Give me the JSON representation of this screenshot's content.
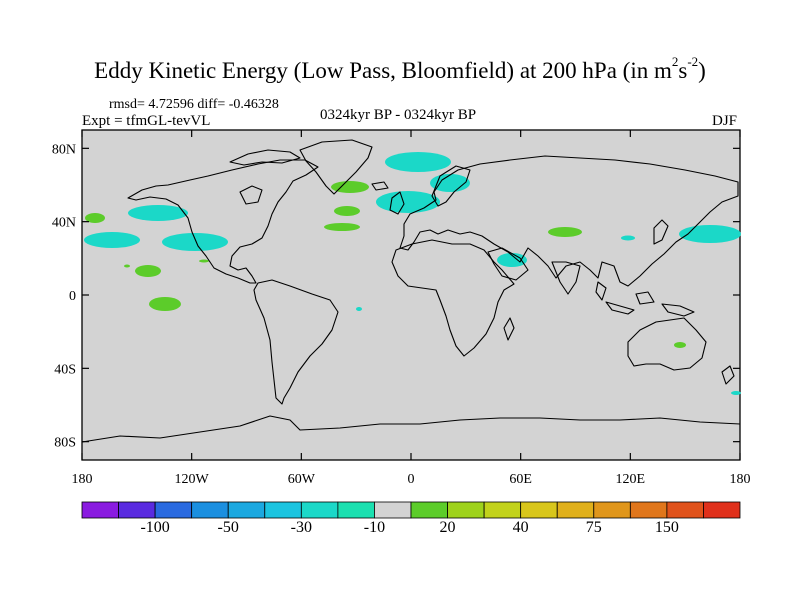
{
  "title": {
    "main": "Eddy Kinetic Energy (Low Pass, Bloomfield) at 200 hPa (in m",
    "sup1": "2",
    "mid": "s",
    "sup2": "-2",
    "end": ")"
  },
  "stats": {
    "rmsd_diff": "rmsd= 4.72596 diff= -0.46328",
    "expt": "Expt = tfmGL-tevVL",
    "period": "0324kyr BP - 0324kyr BP",
    "season": "DJF"
  },
  "map": {
    "background_color": "#d3d3d3",
    "lat_ticks": [
      "80N",
      "40N",
      "0",
      "40S",
      "80S"
    ],
    "lon_ticks": [
      "180",
      "120W",
      "60W",
      "0",
      "60E",
      "120E",
      "180"
    ],
    "lat_values": [
      80,
      40,
      0,
      -40,
      -80
    ],
    "lon_values": [
      -180,
      -120,
      -60,
      0,
      60,
      120,
      180
    ],
    "lat_range": [
      -90,
      90
    ],
    "lon_range": [
      -180,
      180
    ]
  },
  "colorbar": {
    "colors": [
      "#8a1be0",
      "#5a2be0",
      "#2a6ae0",
      "#1b8fe0",
      "#1ba8e0",
      "#1bc4e0",
      "#1bd8c8",
      "#1be0b0",
      "#d3d3d3",
      "#5ccc2a",
      "#9ed21b",
      "#c2d21b",
      "#d8c61b",
      "#e0b01b",
      "#e0961b",
      "#e0761b",
      "#e0521b",
      "#e0301b"
    ],
    "labels": [
      "-100",
      "-50",
      "-30",
      "-10",
      "20",
      "40",
      "75",
      "150"
    ]
  },
  "features": {
    "cyan_color": "#1bd8c8",
    "green_color": "#5ccc2a"
  }
}
